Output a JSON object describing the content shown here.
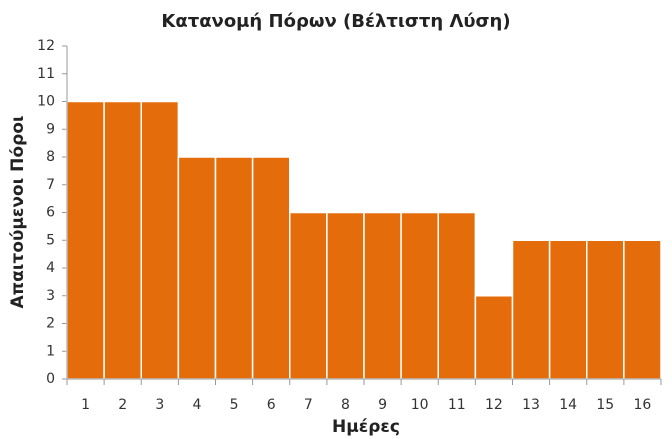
{
  "chart_data": {
    "type": "bar",
    "title": "Κατανομή Πόρων (Βέλτιστη Λύση)",
    "x_label": "Ημέρες",
    "y_label": "Απαιτούμενοι Πόροι",
    "categories": [
      "1",
      "2",
      "3",
      "4",
      "5",
      "6",
      "7",
      "8",
      "9",
      "10",
      "11",
      "12",
      "13",
      "14",
      "15",
      "16"
    ],
    "values": [
      10,
      10,
      10,
      8,
      8,
      8,
      6,
      6,
      6,
      6,
      6,
      3,
      5,
      5,
      5,
      5
    ],
    "color": "#e46c0a",
    "ylim": [
      0,
      12
    ],
    "yticks": [
      0,
      1,
      2,
      3,
      4,
      5,
      6,
      7,
      8,
      9,
      10,
      11,
      12
    ],
    "grid": false
  }
}
